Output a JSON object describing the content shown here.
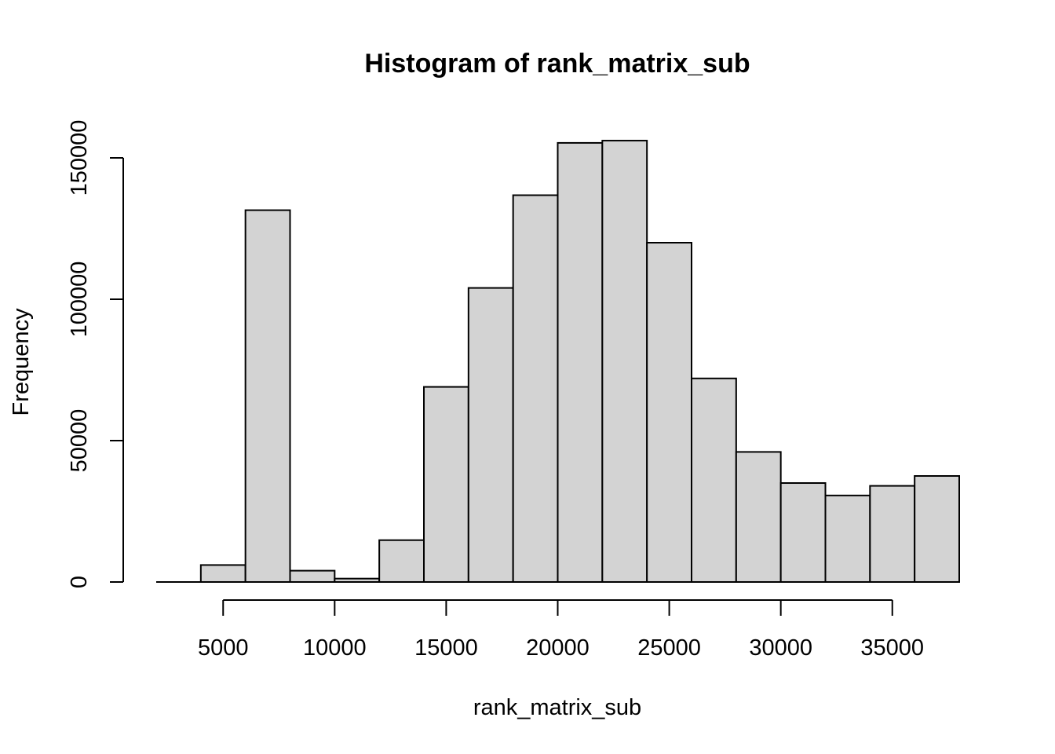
{
  "chart_data": {
    "type": "bar",
    "title": "Histogram of rank_matrix_sub",
    "xlabel": "rank_matrix_sub",
    "ylabel": "Frequency",
    "bins": [
      {
        "from": 2000,
        "to": 4000,
        "count": 0
      },
      {
        "from": 4000,
        "to": 6000,
        "count": 6000
      },
      {
        "from": 6000,
        "to": 8000,
        "count": 131500
      },
      {
        "from": 8000,
        "to": 10000,
        "count": 4000
      },
      {
        "from": 10000,
        "to": 12000,
        "count": 1200
      },
      {
        "from": 12000,
        "to": 14000,
        "count": 14800
      },
      {
        "from": 14000,
        "to": 16000,
        "count": 69000
      },
      {
        "from": 16000,
        "to": 18000,
        "count": 104000
      },
      {
        "from": 18000,
        "to": 20000,
        "count": 136800
      },
      {
        "from": 20000,
        "to": 22000,
        "count": 155300
      },
      {
        "from": 22000,
        "to": 24000,
        "count": 156100
      },
      {
        "from": 24000,
        "to": 26000,
        "count": 120000
      },
      {
        "from": 26000,
        "to": 28000,
        "count": 72000
      },
      {
        "from": 28000,
        "to": 30000,
        "count": 46000
      },
      {
        "from": 30000,
        "to": 32000,
        "count": 35000
      },
      {
        "from": 32000,
        "to": 34000,
        "count": 30600
      },
      {
        "from": 34000,
        "to": 36000,
        "count": 34000
      },
      {
        "from": 36000,
        "to": 38000,
        "count": 37500
      }
    ],
    "xlim": [
      2000,
      38000
    ],
    "ylim": [
      0,
      160000
    ],
    "x_ticks": [
      5000,
      10000,
      15000,
      20000,
      25000,
      30000,
      35000
    ],
    "y_ticks": [
      0,
      50000,
      100000,
      150000
    ],
    "grid": false,
    "bar_color": "#d3d3d3",
    "edge_color": "#000000"
  }
}
